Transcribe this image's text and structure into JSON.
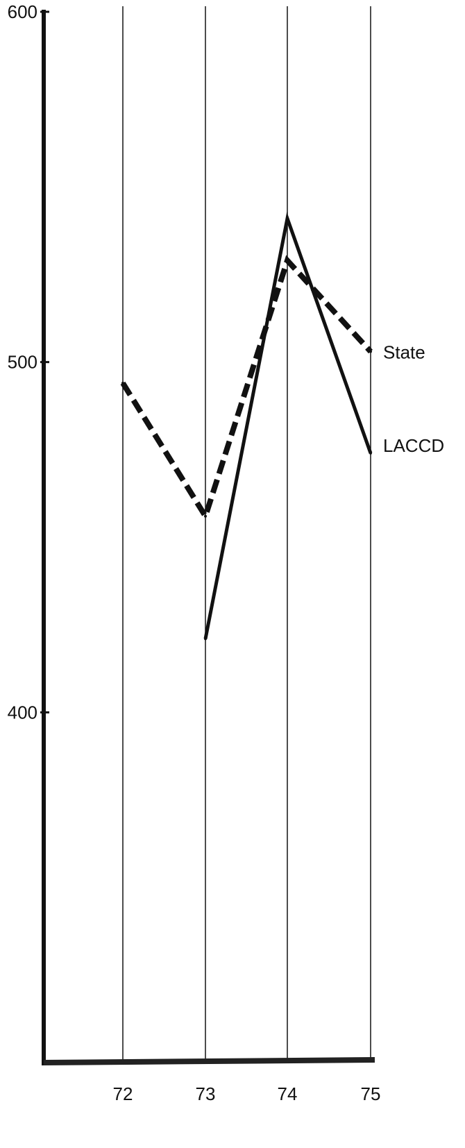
{
  "chart_data": {
    "type": "line",
    "title": "",
    "xlabel": "",
    "ylabel": "",
    "x": [
      "72",
      "73",
      "74",
      "75"
    ],
    "ylim": [
      300,
      600
    ],
    "yticks": [
      400,
      500,
      600
    ],
    "grid": "vertical",
    "series": [
      {
        "name": "State",
        "style": "dashed",
        "color": "#111111",
        "values": [
          494,
          456,
          529,
          503
        ]
      },
      {
        "name": "LACCD",
        "style": "solid",
        "color": "#111111",
        "values": [
          null,
          421,
          541,
          474
        ]
      }
    ]
  }
}
